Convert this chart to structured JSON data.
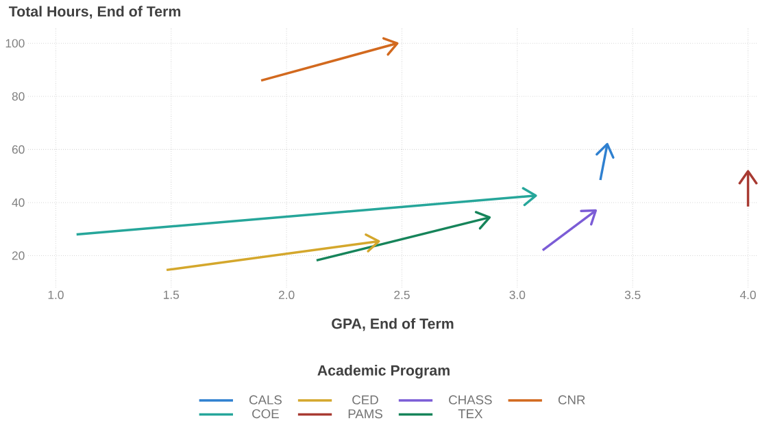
{
  "chart_data": {
    "type": "line",
    "xlabel": "GPA, End of Term",
    "ylabel": "Total Hours, End of Term",
    "legend_title": "Academic Program",
    "xlim": [
      0.88,
      4.04
    ],
    "ylim": [
      8,
      106
    ],
    "xticks": [
      {
        "value": 1,
        "label": "1.0"
      },
      {
        "value": 1.5,
        "label": "1.5"
      },
      {
        "value": 2,
        "label": "2.0"
      },
      {
        "value": 2.5,
        "label": "2.5"
      },
      {
        "value": 3,
        "label": "3.0"
      },
      {
        "value": 3.5,
        "label": "3.5"
      },
      {
        "value": 4,
        "label": "4.0"
      }
    ],
    "yticks": [
      20,
      40,
      60,
      80,
      100
    ],
    "grid": true,
    "legend": "bottom",
    "marker": "none",
    "line_style": "solid",
    "series": [
      {
        "name": "CALS",
        "color": "#2f80d0",
        "x": [
          3.36,
          3.39
        ],
        "values": [
          48.5,
          62
        ]
      },
      {
        "name": "CED",
        "color": "#d4a72c",
        "x": [
          1.48,
          2.4
        ],
        "values": [
          14.6,
          25.4
        ]
      },
      {
        "name": "CHASS",
        "color": "#7b5cd6",
        "x": [
          3.11,
          3.34
        ],
        "values": [
          22,
          37
        ]
      },
      {
        "name": "CNR",
        "color": "#d2691e",
        "x": [
          1.89,
          2.48
        ],
        "values": [
          86,
          100
        ]
      },
      {
        "name": "COE",
        "color": "#26a69a",
        "x": [
          1.09,
          3.08
        ],
        "values": [
          28,
          42.6
        ]
      },
      {
        "name": "PAMS",
        "color": "#a83a32",
        "x": [
          4.0,
          4.0
        ],
        "values": [
          38.5,
          51.8
        ]
      },
      {
        "name": "TEX",
        "color": "#16845a",
        "x": [
          2.13,
          2.88
        ],
        "values": [
          18.2,
          34.4
        ]
      }
    ]
  }
}
